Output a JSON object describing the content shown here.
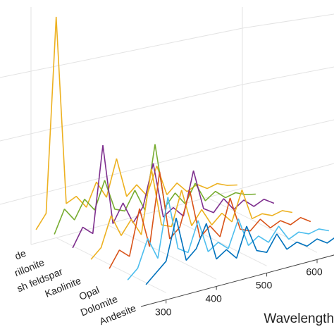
{
  "chart_data": {
    "type": "waterfall",
    "xlabel": "Wavelength (",
    "x": [
      260,
      280,
      300,
      320,
      340,
      360,
      380,
      400,
      420,
      440,
      460,
      480,
      500,
      520,
      540,
      560,
      580,
      600,
      620,
      640,
      660
    ],
    "xlim": [
      250,
      670
    ],
    "xticks": [
      300,
      400,
      500,
      600
    ],
    "ylim": [
      0,
      1
    ],
    "series": [
      {
        "name": "Andesite",
        "color": "#0072bd",
        "values": [
          0.06,
          0.1,
          0.14,
          0.32,
          0.12,
          0.16,
          0.26,
          0.09,
          0.12,
          0.07,
          0.2,
          0.08,
          0.06,
          0.13,
          0.05,
          0.07,
          0.04,
          0.06,
          0.03,
          0.05,
          0.03
        ]
      },
      {
        "name": "Dolomite",
        "color": "#4dbeee",
        "values": [
          0.04,
          0.08,
          0.2,
          0.1,
          0.36,
          0.12,
          0.09,
          0.22,
          0.07,
          0.1,
          0.06,
          0.18,
          0.05,
          0.08,
          0.04,
          0.1,
          0.03,
          0.05,
          0.03,
          0.04,
          0.02
        ]
      },
      {
        "name": "Opal",
        "color": "#d95319",
        "values": [
          0.05,
          0.12,
          0.08,
          0.28,
          0.1,
          0.42,
          0.11,
          0.15,
          0.3,
          0.08,
          0.12,
          0.06,
          0.22,
          0.07,
          0.05,
          0.09,
          0.04,
          0.06,
          0.03,
          0.05,
          0.02
        ]
      },
      {
        "name": "Kaolinite",
        "color": "#edb120",
        "values": [
          0.05,
          0.09,
          0.22,
          0.12,
          0.18,
          0.1,
          0.38,
          0.12,
          0.1,
          0.25,
          0.08,
          0.14,
          0.06,
          0.1,
          0.05,
          0.18,
          0.04,
          0.05,
          0.03,
          0.04,
          0.02
        ]
      },
      {
        "name": "sh feldspar",
        "color": "#7e2f8e",
        "values": [
          0.06,
          0.14,
          0.1,
          0.48,
          0.12,
          0.2,
          0.1,
          0.16,
          0.34,
          0.09,
          0.12,
          0.07,
          0.26,
          0.08,
          0.05,
          0.1,
          0.04,
          0.07,
          0.03,
          0.05,
          0.02
        ]
      },
      {
        "name": "rillonite",
        "color": "#77ac30",
        "values": [
          0.08,
          0.18,
          0.12,
          0.2,
          0.14,
          0.26,
          0.12,
          0.1,
          0.18,
          0.08,
          0.36,
          0.07,
          0.12,
          0.06,
          0.14,
          0.05,
          0.08,
          0.04,
          0.05,
          0.03,
          0.02
        ]
      },
      {
        "name": "de",
        "color": "#edb120",
        "values": [
          0.06,
          0.12,
          0.98,
          0.14,
          0.16,
          0.1,
          0.2,
          0.12,
          0.28,
          0.1,
          0.14,
          0.08,
          0.2,
          0.06,
          0.1,
          0.05,
          0.07,
          0.04,
          0.05,
          0.03,
          0.02
        ]
      }
    ]
  }
}
